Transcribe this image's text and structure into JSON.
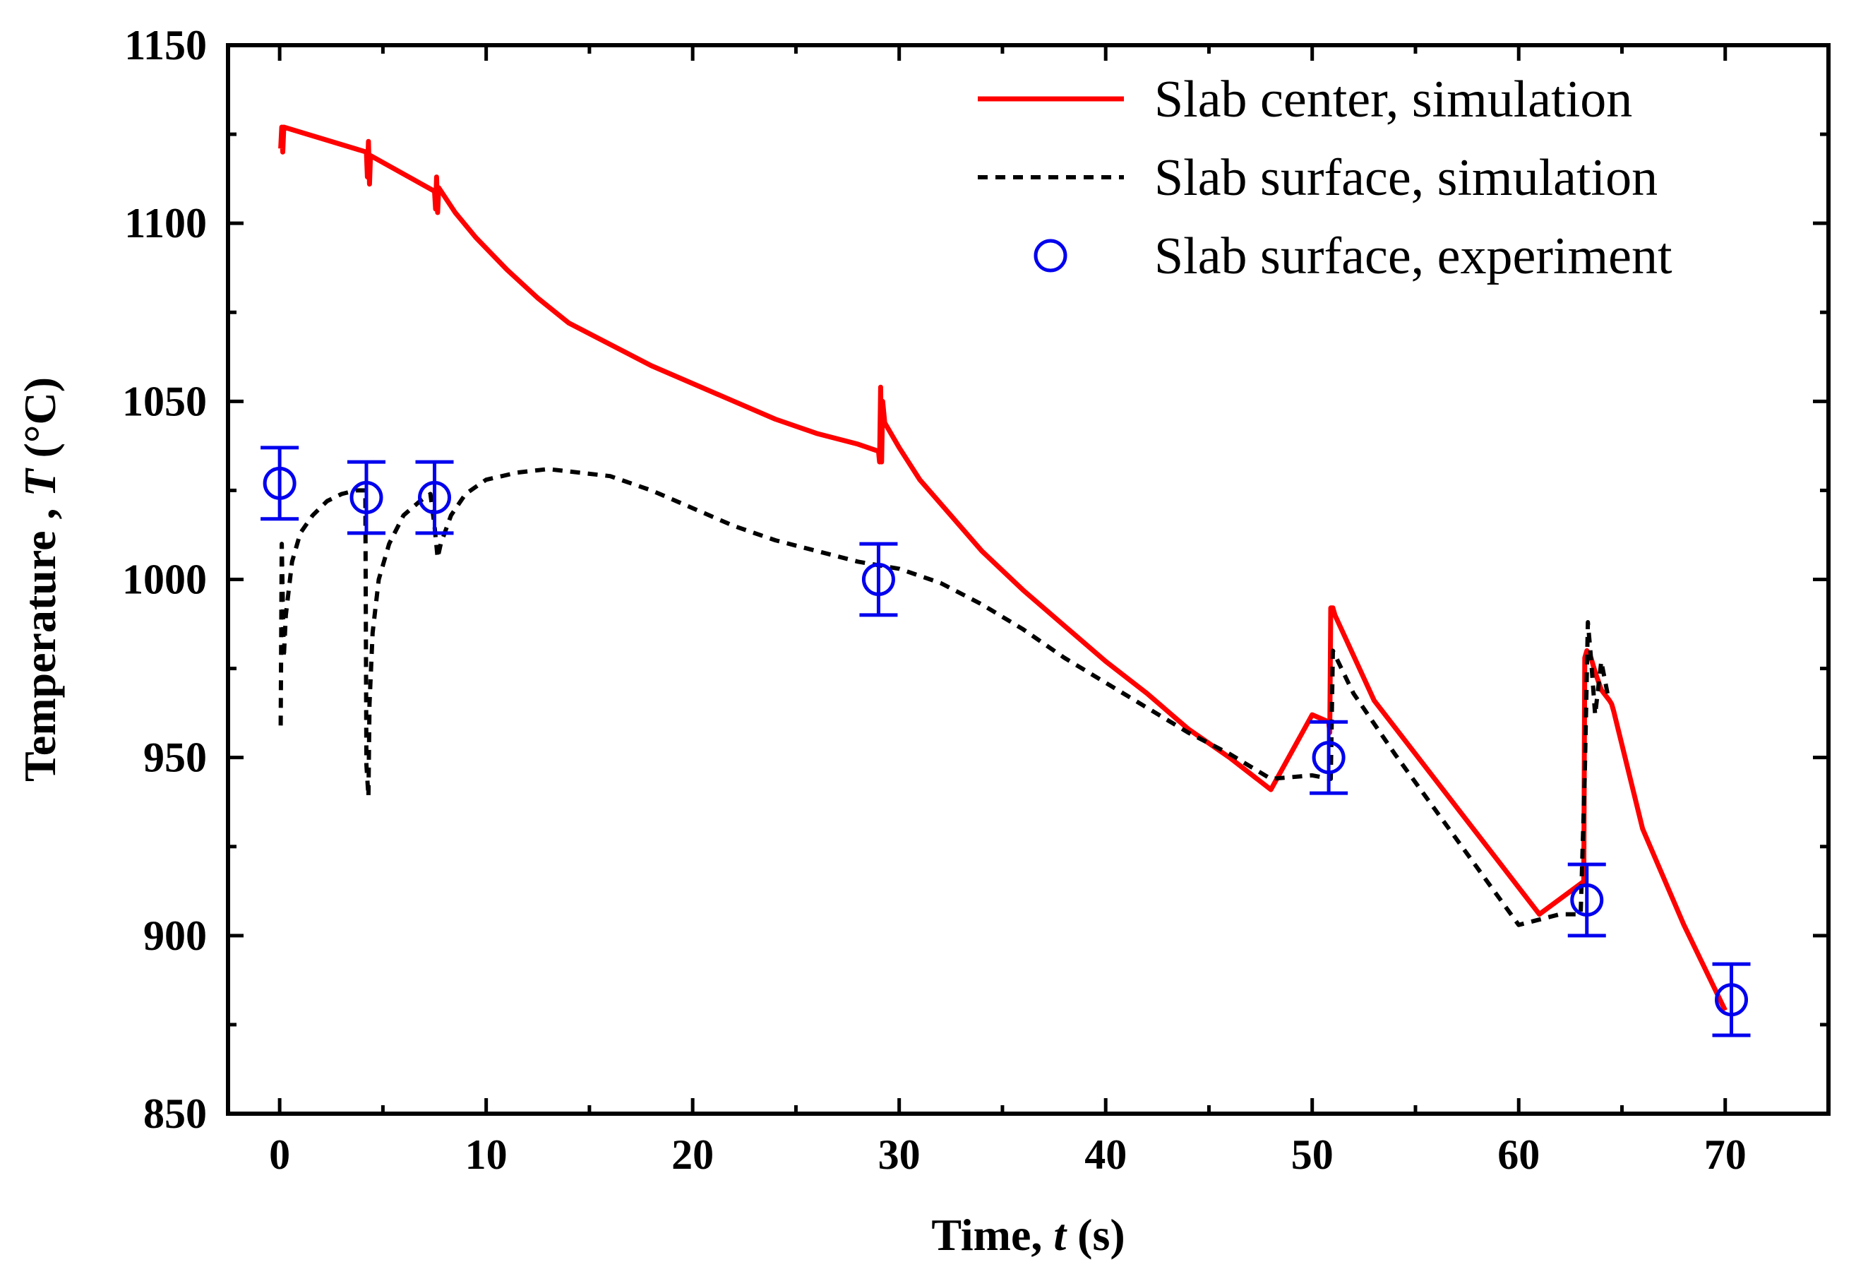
{
  "chart_data": {
    "type": "line",
    "title": "",
    "xlabel": "Time, t (s)",
    "xlabel_parts": {
      "prefix": "Time, ",
      "var": "t",
      "suffix": " (s)"
    },
    "ylabel": "Temperature , T (°C)",
    "ylabel_parts": {
      "prefix": "Temperature , ",
      "var": "T",
      "suffix": " (°C)"
    },
    "xlim": [
      -2.5,
      75
    ],
    "ylim": [
      850,
      1150
    ],
    "xticks": [
      0,
      10,
      20,
      30,
      40,
      50,
      60,
      70
    ],
    "xtick_labels": [
      "0",
      "10",
      "20",
      "30",
      "40",
      "50",
      "60",
      "70"
    ],
    "yticks": [
      850,
      900,
      950,
      1000,
      1050,
      1100,
      1150
    ],
    "ytick_labels": [
      "850",
      "900",
      "950",
      "1000",
      "1050",
      "1100",
      "1150"
    ],
    "legend_position": "top-right",
    "series": [
      {
        "name": "Slab center, simulation",
        "kind": "line",
        "style": "solid",
        "color": "#ff0000",
        "x": [
          0.05,
          0.1,
          0.15,
          0.2,
          4.2,
          4.25,
          4.3,
          4.35,
          4.4,
          7.5,
          7.55,
          7.6,
          7.65,
          7.7,
          8.5,
          9.5,
          11,
          12.5,
          14,
          16,
          18,
          20,
          22,
          24,
          26,
          28,
          29.0,
          29.05,
          29.1,
          29.15,
          29.2,
          29.3,
          30,
          31,
          32.5,
          34,
          36,
          38,
          40,
          42,
          44,
          46,
          48,
          50,
          50.8,
          50.85,
          50.9,
          51.0,
          51.1,
          53,
          55,
          57,
          59,
          61,
          63.1,
          63.15,
          63.2,
          63.3,
          63.5,
          63.7,
          64.0,
          64.4,
          64.5,
          64.6,
          66,
          68,
          70.0
        ],
        "y": [
          1121,
          1127,
          1120,
          1127,
          1120,
          1113,
          1123,
          1111,
          1119,
          1109,
          1104,
          1113,
          1103,
          1110,
          1103,
          1096,
          1087,
          1079,
          1072,
          1066,
          1060,
          1055,
          1050,
          1045,
          1041,
          1038,
          1036,
          1033,
          1054,
          1033,
          1050,
          1044,
          1037,
          1028,
          1018,
          1008,
          997,
          987,
          977,
          968,
          958,
          950,
          941,
          962,
          960,
          957,
          992,
          992,
          990,
          966,
          951,
          936,
          921,
          906,
          915,
          915,
          978,
          980,
          978,
          974,
          969,
          966,
          965,
          963,
          930,
          903,
          879
        ]
      },
      {
        "name": "Slab surface, simulation",
        "kind": "line",
        "style": "dashed",
        "color": "#000000",
        "x": [
          0.05,
          0.1,
          0.2,
          0.3,
          0.6,
          1.0,
          1.6,
          2.3,
          3.0,
          3.7,
          4.15,
          4.2,
          4.3,
          4.35,
          4.5,
          4.8,
          5.3,
          6.0,
          6.8,
          7.3,
          7.5,
          7.65,
          7.8,
          8.3,
          9.0,
          10,
          11.5,
          13,
          14.5,
          16,
          18,
          20,
          22,
          24,
          26,
          28,
          30,
          32,
          34,
          36,
          38,
          40,
          42,
          44,
          46,
          48,
          50,
          50.9,
          51.0,
          52,
          54,
          56,
          58,
          60,
          62,
          63.0,
          63.2,
          63.35,
          63.5,
          63.7,
          64.0,
          64.3
        ],
        "y": [
          959,
          1010,
          978,
          990,
          1005,
          1013,
          1018,
          1022,
          1024,
          1025,
          1025,
          948,
          939,
          965,
          985,
          1000,
          1010,
          1018,
          1022,
          1024,
          1015,
          1006,
          1010,
          1018,
          1024,
          1028,
          1030,
          1031,
          1030,
          1029,
          1025,
          1020,
          1015,
          1011,
          1008,
          1005,
          1003,
          999,
          993,
          986,
          978,
          971,
          964,
          957,
          951,
          944,
          945,
          944,
          980,
          968,
          951,
          935,
          919,
          903,
          906,
          906,
          945,
          988,
          978,
          962,
          977,
          968
        ]
      },
      {
        "name": "Slab surface, experiment",
        "kind": "scatter",
        "marker": "open-circle",
        "color": "#0000ee",
        "x": [
          0,
          4.2,
          7.5,
          29.0,
          50.8,
          63.3,
          70.3
        ],
        "y": [
          1027,
          1023,
          1023,
          1000,
          950,
          910,
          882
        ],
        "yerr": [
          10,
          10,
          10,
          10,
          10,
          10,
          10
        ]
      }
    ]
  }
}
